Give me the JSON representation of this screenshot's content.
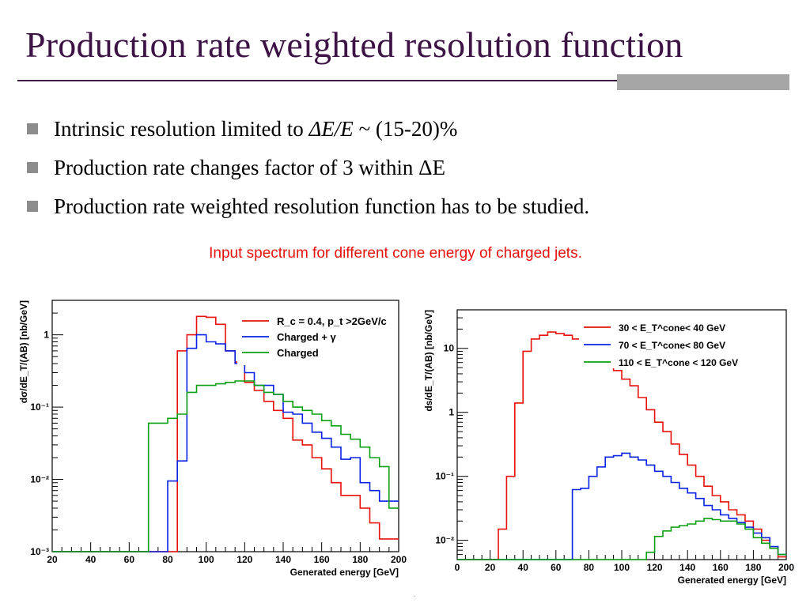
{
  "slide": {
    "title": "Production rate weighted resolution function",
    "bullets": [
      {
        "pre": "Intrinsic resolution limited to ",
        "em": "ΔE/E",
        "post": " ~ (15-20)%"
      },
      {
        "pre": "Production rate changes factor of 3 within ΔE",
        "em": "",
        "post": ""
      },
      {
        "pre": "Production rate weighted resolution function has to be studied.",
        "em": "",
        "post": ""
      }
    ],
    "caption": "Input spectrum for different cone energy of charged jets.",
    "colors": {
      "title": "#3d1245",
      "caption": "#e8120c",
      "bullet": "#8c8c8c",
      "bar": "#a6a6a6"
    }
  },
  "chart_data": [
    {
      "type": "line",
      "step": true,
      "log_y": true,
      "xlabel": "Generated   energy   [GeV]",
      "ylabel": "dσ/dE_T/(AB)  [nb/GeV]",
      "xlim": [
        20,
        200
      ],
      "ylim": [
        0.001,
        3
      ],
      "x_ticks": [
        20,
        40,
        60,
        80,
        100,
        120,
        140,
        160,
        180,
        200
      ],
      "y_ticks": [
        {
          "value": 1,
          "label": "1"
        },
        {
          "value": 0.1,
          "label": "10⁻¹"
        },
        {
          "value": 0.01,
          "label": "10⁻²"
        },
        {
          "value": 0.001,
          "label": "10⁻³"
        }
      ],
      "legend_position": "top-right",
      "bin_edges": [
        20,
        25,
        30,
        35,
        40,
        45,
        50,
        55,
        60,
        65,
        70,
        75,
        80,
        85,
        90,
        95,
        100,
        105,
        110,
        115,
        120,
        125,
        130,
        135,
        140,
        145,
        150,
        155,
        160,
        165,
        170,
        175,
        180,
        185,
        190,
        195,
        200
      ],
      "series": [
        {
          "name": "R_c =  0.4, p_t >2GeV/c",
          "color": "#e8120c",
          "values": [
            0.001,
            0.001,
            0.001,
            0.001,
            0.001,
            0.001,
            0.001,
            0.001,
            0.001,
            0.001,
            0.001,
            0.001,
            0.001,
            0.6,
            1.0,
            1.8,
            1.75,
            1.4,
            0.6,
            0.42,
            0.22,
            0.17,
            0.12,
            0.09,
            0.07,
            0.035,
            0.03,
            0.02,
            0.014,
            0.009,
            0.006,
            0.006,
            0.004,
            0.0025,
            0.0015,
            0.0015
          ]
        },
        {
          "name": "Charged  +  γ",
          "color": "#0a22e6",
          "values": [
            0.001,
            0.001,
            0.001,
            0.001,
            0.001,
            0.001,
            0.001,
            0.001,
            0.001,
            0.001,
            0.001,
            0.001,
            0.0095,
            0.018,
            0.65,
            1.0,
            0.8,
            0.75,
            0.6,
            0.4,
            0.3,
            0.2,
            0.2,
            0.15,
            0.085,
            0.08,
            0.06,
            0.045,
            0.037,
            0.028,
            0.019,
            0.02,
            0.009,
            0.007,
            0.005,
            0.005
          ]
        },
        {
          "name": "Charged",
          "color": "#0aa012",
          "values": [
            0.001,
            0.001,
            0.001,
            0.001,
            0.001,
            0.001,
            0.001,
            0.001,
            0.001,
            0.001,
            0.06,
            0.06,
            0.07,
            0.08,
            0.16,
            0.2,
            0.2,
            0.21,
            0.22,
            0.23,
            0.23,
            0.2,
            0.16,
            0.15,
            0.12,
            0.1,
            0.09,
            0.08,
            0.065,
            0.055,
            0.042,
            0.036,
            0.028,
            0.02,
            0.015,
            0.004
          ]
        }
      ]
    },
    {
      "type": "line",
      "step": true,
      "log_y": true,
      "xlabel": "Generated   energy   [GeV]",
      "ylabel": "ds/dE_T/(AB)  [nb/GeV]",
      "xlim": [
        0,
        200
      ],
      "ylim": [
        0.005,
        40
      ],
      "x_ticks": [
        0,
        20,
        40,
        60,
        80,
        100,
        120,
        140,
        160,
        180,
        200
      ],
      "y_ticks": [
        {
          "value": 10,
          "label": "10"
        },
        {
          "value": 1,
          "label": "1"
        },
        {
          "value": 0.1,
          "label": "10⁻¹"
        },
        {
          "value": 0.01,
          "label": "10⁻²"
        }
      ],
      "legend_position": "top-right",
      "bin_edges": [
        0,
        5,
        10,
        15,
        20,
        25,
        30,
        35,
        40,
        45,
        50,
        55,
        60,
        65,
        70,
        75,
        80,
        85,
        90,
        95,
        100,
        105,
        110,
        115,
        120,
        125,
        130,
        135,
        140,
        145,
        150,
        155,
        160,
        165,
        170,
        175,
        180,
        185,
        190,
        195,
        200
      ],
      "series": [
        {
          "name": "30  <  E_T^cone<     40  GeV",
          "color": "#e8120c",
          "values": [
            0.005,
            0.005,
            0.005,
            0.005,
            0.005,
            0.015,
            0.1,
            1.4,
            9.0,
            14,
            16,
            18,
            17,
            16,
            14,
            11.5,
            9.5,
            7.5,
            5.5,
            4.5,
            3.3,
            2.6,
            1.7,
            1.1,
            0.7,
            0.5,
            0.32,
            0.22,
            0.15,
            0.1,
            0.07,
            0.05,
            0.04,
            0.03,
            0.025,
            0.02,
            0.015,
            0.01,
            0.0075,
            0.0055
          ]
        },
        {
          "name": "70  <  E_T^cone<     80  GeV",
          "color": "#0a22e6",
          "values": [
            0.005,
            0.005,
            0.005,
            0.005,
            0.005,
            0.005,
            0.005,
            0.005,
            0.005,
            0.005,
            0.005,
            0.005,
            0.005,
            0.005,
            0.062,
            0.065,
            0.1,
            0.14,
            0.2,
            0.21,
            0.23,
            0.2,
            0.18,
            0.15,
            0.12,
            0.1,
            0.08,
            0.065,
            0.055,
            0.045,
            0.035,
            0.03,
            0.025,
            0.022,
            0.019,
            0.016,
            0.013,
            0.011,
            0.008,
            0.006
          ]
        },
        {
          "name": "110  <  E_T^cone  <  120  GeV",
          "color": "#0aa012",
          "values": [
            0.005,
            0.005,
            0.005,
            0.005,
            0.005,
            0.005,
            0.005,
            0.005,
            0.005,
            0.005,
            0.005,
            0.005,
            0.005,
            0.005,
            0.005,
            0.005,
            0.005,
            0.005,
            0.005,
            0.005,
            0.005,
            0.005,
            0.005,
            0.0065,
            0.0115,
            0.014,
            0.016,
            0.017,
            0.018,
            0.02,
            0.022,
            0.021,
            0.02,
            0.02,
            0.018,
            0.015,
            0.011,
            0.009,
            0.0075,
            0.006
          ]
        }
      ]
    }
  ]
}
